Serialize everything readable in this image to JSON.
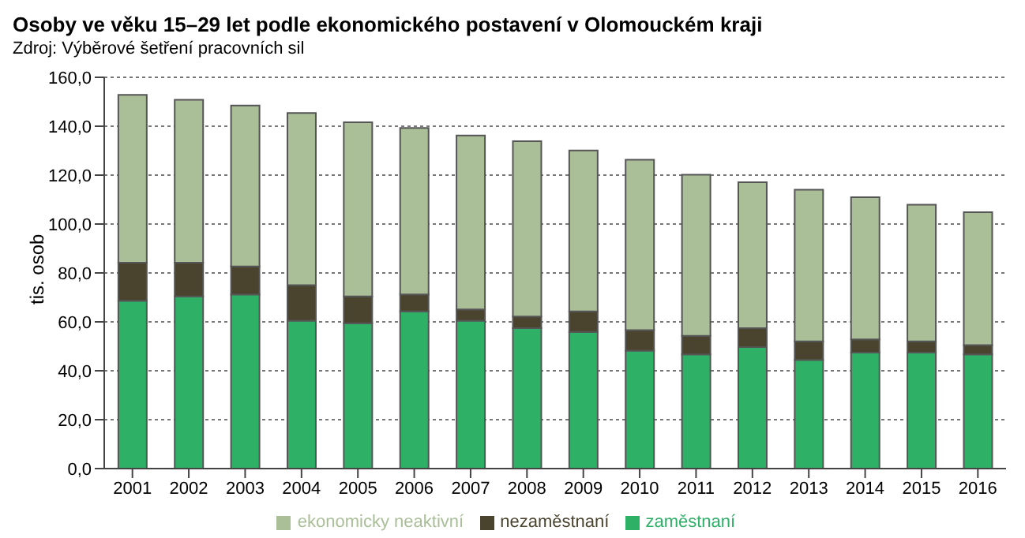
{
  "chart_data": {
    "type": "bar",
    "title": "Osoby ve věku 15–29 let podle ekonomického postavení v Olomouckém kraji",
    "subtitle": "Zdroj: Výběrové šetření pracovních sil",
    "ylabel": "tis. osob",
    "categories": [
      "2001",
      "2002",
      "2003",
      "2004",
      "2005",
      "2006",
      "2007",
      "2008",
      "2009",
      "2010",
      "2011",
      "2012",
      "2013",
      "2014",
      "2015",
      "2016"
    ],
    "stacked": true,
    "series": [
      {
        "name": "zaměstnaní",
        "color": "#2eb067",
        "values": [
          68.6,
          70.4,
          71.2,
          60.5,
          59.4,
          64.3,
          60.5,
          57.4,
          55.9,
          48.2,
          46.7,
          49.7,
          44.4,
          47.4,
          47.4,
          46.7
        ]
      },
      {
        "name": "nezaměstnaní",
        "color": "#4a432d",
        "values": [
          15.6,
          13.8,
          11.5,
          14.5,
          11.0,
          6.9,
          4.6,
          4.8,
          8.4,
          8.4,
          7.6,
          7.7,
          7.6,
          5.4,
          4.6,
          3.8
        ]
      },
      {
        "name": "ekonomicky neaktivní",
        "color": "#aabf98",
        "values": [
          68.6,
          66.6,
          65.8,
          70.4,
          71.2,
          68.1,
          71.1,
          71.7,
          65.8,
          69.7,
          65.9,
          59.7,
          62.0,
          58.2,
          55.9,
          54.3
        ]
      }
    ],
    "ylim": [
      0,
      160
    ],
    "yticks": [
      {
        "value": 0,
        "label": "0,0"
      },
      {
        "value": 20,
        "label": "20,0"
      },
      {
        "value": 40,
        "label": "40,0"
      },
      {
        "value": 60,
        "label": "60,0"
      },
      {
        "value": 80,
        "label": "80,0"
      },
      {
        "value": 100,
        "label": "100,0"
      },
      {
        "value": 120,
        "label": "120,0"
      },
      {
        "value": 140,
        "label": "140,0"
      },
      {
        "value": 160,
        "label": "160,0"
      }
    ],
    "grid": "y",
    "legend": "bottom"
  }
}
